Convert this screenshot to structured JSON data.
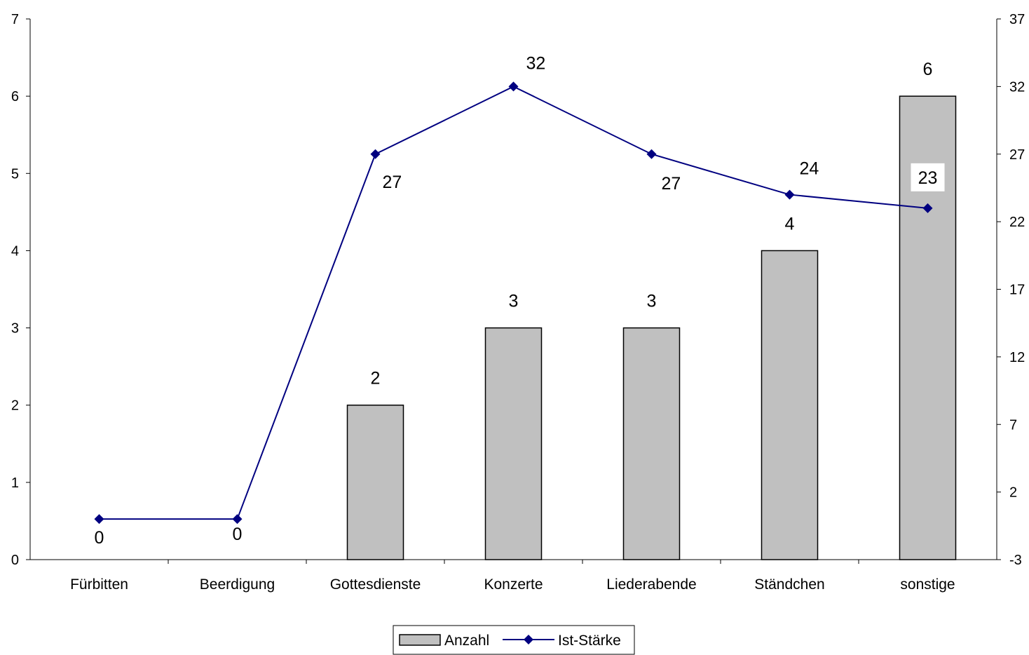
{
  "chart_data": {
    "type": "bar",
    "categories": [
      "Fürbitten",
      "Beerdigung",
      "Gottesdienste",
      "Konzerte",
      "Liederabende",
      "Ständchen",
      "sonstige"
    ],
    "series": [
      {
        "name": "Anzahl",
        "type": "bar",
        "axis": "left",
        "values": [
          0,
          0,
          2,
          3,
          3,
          4,
          6
        ],
        "data_labels": [
          "",
          "",
          "2",
          "3",
          "3",
          "4",
          "6"
        ],
        "color": "#c0c0c0"
      },
      {
        "name": "Ist-Stärke",
        "type": "line",
        "axis": "right",
        "values": [
          0,
          0,
          27,
          32,
          27,
          24,
          23
        ],
        "data_labels": [
          "0",
          "0",
          "27",
          "32",
          "27",
          "24",
          "23"
        ],
        "color": "#000080"
      }
    ],
    "y_left": {
      "ylim": [
        0,
        7
      ],
      "ticks": [
        "0",
        "1",
        "2",
        "3",
        "4",
        "5",
        "6",
        "7"
      ]
    },
    "y_right": {
      "ylim": [
        -3,
        37
      ],
      "ticks": [
        "-3",
        "2",
        "7",
        "12",
        "17",
        "22",
        "27",
        "32",
        "37"
      ]
    },
    "xlabel": "",
    "ylabel": "",
    "grid": false,
    "legend": "bottom-center"
  }
}
